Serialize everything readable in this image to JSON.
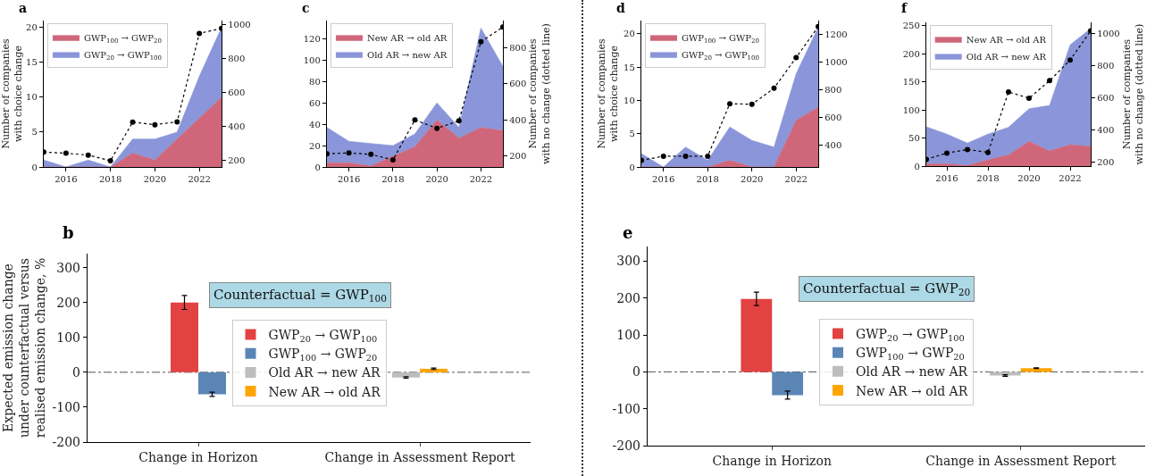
{
  "chart_data": [
    {
      "type": "area",
      "title": "a",
      "ylabel": "Number of companies\nwith choice change",
      "x": [
        2015,
        2016,
        2017,
        2018,
        2019,
        2020,
        2021,
        2022,
        2023
      ],
      "stacked": true,
      "legend": "top left",
      "grid": false,
      "series": [
        {
          "name": "GWP$_{100}$ → GWP$_{20}$",
          "color": "#cf6679",
          "values": [
            0,
            0,
            0,
            0,
            2,
            1,
            4,
            7,
            10
          ]
        },
        {
          "name": "GWP$_{20}$ → GWP$_{100}$",
          "color": "#8a96d9",
          "values": [
            1,
            0,
            1,
            0,
            2,
            3,
            1,
            6,
            10
          ]
        },
        {
          "type": "line",
          "axis": "y2",
          "color": "#000000",
          "marker": "circle",
          "line_style": "dotted",
          "values": [
            251,
            244,
            233,
            200,
            427,
            412,
            429,
            949,
            979
          ]
        }
      ],
      "xlim": [
        2015,
        2023
      ],
      "xticks": [
        2016,
        2018,
        2020,
        2022
      ],
      "ylim": [
        0,
        21
      ],
      "yticks": [
        0,
        5,
        10,
        15,
        20
      ],
      "y2lim": [
        163,
        1025
      ],
      "y2ticks": [
        200,
        400,
        600,
        800,
        1000
      ]
    },
    {
      "type": "area",
      "title": "c",
      "y2label": "Number of companies\nwith no change (dotted line)",
      "x": [
        2015,
        2016,
        2017,
        2018,
        2019,
        2020,
        2021,
        2022,
        2023
      ],
      "stacked": true,
      "legend": "top left",
      "grid": false,
      "series": [
        {
          "name": "New AR → old AR",
          "color": "#cf6679",
          "values": [
            4,
            4,
            1,
            10,
            19,
            44,
            27,
            37,
            34
          ]
        },
        {
          "name": "Old AR → new AR",
          "color": "#8a96d9",
          "values": [
            33,
            20,
            21,
            10,
            12,
            16,
            10,
            93,
            60
          ]
        },
        {
          "type": "line",
          "axis": "y2",
          "color": "#000000",
          "marker": "circle",
          "line_style": "dotted",
          "values": [
            213,
            218,
            210,
            179,
            400,
            354,
            395,
            833,
            914
          ]
        }
      ],
      "xlim": [
        2015,
        2023
      ],
      "xticks": [
        2016,
        2018,
        2020,
        2022
      ],
      "ylim": [
        0,
        137
      ],
      "yticks": [
        0,
        20,
        40,
        60,
        80,
        100,
        120
      ],
      "y2lim": [
        140,
        950
      ],
      "y2ticks": [
        200,
        400,
        600,
        800
      ]
    },
    {
      "type": "area",
      "title": "d",
      "ylabel": "Number of companies\nwith choice change",
      "x": [
        2015,
        2016,
        2017,
        2018,
        2019,
        2020,
        2021,
        2022,
        2023
      ],
      "stacked": true,
      "legend": "top left",
      "grid": false,
      "series": [
        {
          "name": "GWP$_{100}$ → GWP$_{20}$",
          "color": "#cf6679",
          "values": [
            0,
            0,
            0,
            0,
            1,
            0,
            0,
            7,
            9
          ]
        },
        {
          "name": "GWP$_{20}$ → GWP$_{100}$",
          "color": "#8a96d9",
          "values": [
            2,
            0,
            3,
            1,
            5,
            4,
            3,
            7,
            12
          ]
        },
        {
          "type": "line",
          "axis": "y2",
          "color": "#000000",
          "marker": "circle",
          "line_style": "dotted",
          "values": [
            288,
            318,
            318,
            318,
            698,
            694,
            810,
            1032,
            1256
          ]
        }
      ],
      "xlim": [
        2015,
        2023
      ],
      "xticks": [
        2016,
        2018,
        2020,
        2022
      ],
      "ylim": [
        0,
        22
      ],
      "yticks": [
        0,
        5,
        10,
        15,
        20
      ],
      "y2lim": [
        240,
        1300
      ],
      "y2ticks": [
        400,
        600,
        800,
        1000,
        1200
      ]
    },
    {
      "type": "area",
      "title": "f",
      "y2label": "Number of companies\nwith no change (dotted line)",
      "x": [
        2015,
        2016,
        2017,
        2018,
        2019,
        2020,
        2021,
        2022,
        2023
      ],
      "stacked": true,
      "legend": "top left",
      "grid": false,
      "series": [
        {
          "name": "New AR → old AR",
          "color": "#cf6679",
          "values": [
            4,
            4,
            1,
            11,
            20,
            44,
            27,
            38,
            35
          ]
        },
        {
          "name": "Old AR → new AR",
          "color": "#8a96d9",
          "values": [
            66,
            53,
            40,
            46,
            49,
            58,
            81,
            178,
            210
          ]
        },
        {
          "type": "line",
          "axis": "y2",
          "color": "#000000",
          "marker": "circle",
          "line_style": "dotted",
          "values": [
            218,
            257,
            279,
            261,
            636,
            597,
            706,
            834,
            1015
          ]
        }
      ],
      "xlim": [
        2015,
        2023
      ],
      "xticks": [
        2016,
        2018,
        2020,
        2022
      ],
      "ylim": [
        0,
        256
      ],
      "yticks": [
        0,
        50,
        100,
        150,
        200,
        250
      ],
      "y2lim": [
        176,
        1068
      ],
      "y2ticks": [
        200,
        400,
        600,
        800,
        1000
      ]
    },
    {
      "type": "bar",
      "title": "b",
      "ylabel": "Expected emission change\nunder counterfactual versus\nrealised emission change, %",
      "categories": [
        "Change in Horizon",
        "Change in Assessment Report"
      ],
      "legend": "center",
      "grid": false,
      "series": [
        {
          "name": "GWP$_{20}$ → GWP$_{100}$",
          "color": "#e34242",
          "values": [
            200,
            null
          ],
          "errors": [
            20,
            null
          ]
        },
        {
          "name": "GWP$_{100}$ → GWP$_{20}$",
          "color": "#5b85b5",
          "values": [
            -63,
            null
          ],
          "errors": [
            6,
            null
          ]
        },
        {
          "name": "Old AR → new AR",
          "color": "#bdbdbd",
          "values": [
            null,
            -15
          ],
          "errors": [
            null,
            2
          ]
        },
        {
          "name": "New AR → old AR",
          "color": "#ffa500",
          "values": [
            null,
            10
          ],
          "errors": [
            null,
            2
          ]
        }
      ],
      "ylim": [
        -200,
        340
      ],
      "yticks": [
        -200,
        -100,
        0,
        100,
        200,
        300
      ],
      "ref_lines": [
        {
          "axis": "y",
          "value": 0,
          "color": "#555555",
          "line_style": "dashed"
        }
      ],
      "annotations": [
        "Counterfactual = GWP$_{100}$"
      ]
    },
    {
      "type": "bar",
      "title": "e",
      "categories": [
        "Change in Horizon",
        "Change in Assessment Report"
      ],
      "legend": "center",
      "grid": false,
      "series": [
        {
          "name": "GWP$_{20}$ → GWP$_{100}$",
          "color": "#e34242",
          "values": [
            198,
            null
          ],
          "errors": [
            18,
            null
          ]
        },
        {
          "name": "GWP$_{100}$ → GWP$_{20}$",
          "color": "#5b85b5",
          "values": [
            -63,
            null
          ],
          "errors": [
            11,
            null
          ]
        },
        {
          "name": "Old AR → new AR",
          "color": "#bdbdbd",
          "values": [
            null,
            -10
          ],
          "errors": [
            null,
            2
          ]
        },
        {
          "name": "New AR → old AR",
          "color": "#ffa500",
          "values": [
            null,
            10
          ],
          "errors": [
            null,
            1
          ]
        }
      ],
      "ylim": [
        -200,
        340
      ],
      "yticks": [
        -200,
        -100,
        0,
        100,
        200,
        300
      ],
      "ref_lines": [
        {
          "axis": "y",
          "value": 0,
          "color": "#555555",
          "line_style": "dashed"
        }
      ],
      "annotations": [
        "Counterfactual = GWP$_{20}$"
      ]
    }
  ]
}
